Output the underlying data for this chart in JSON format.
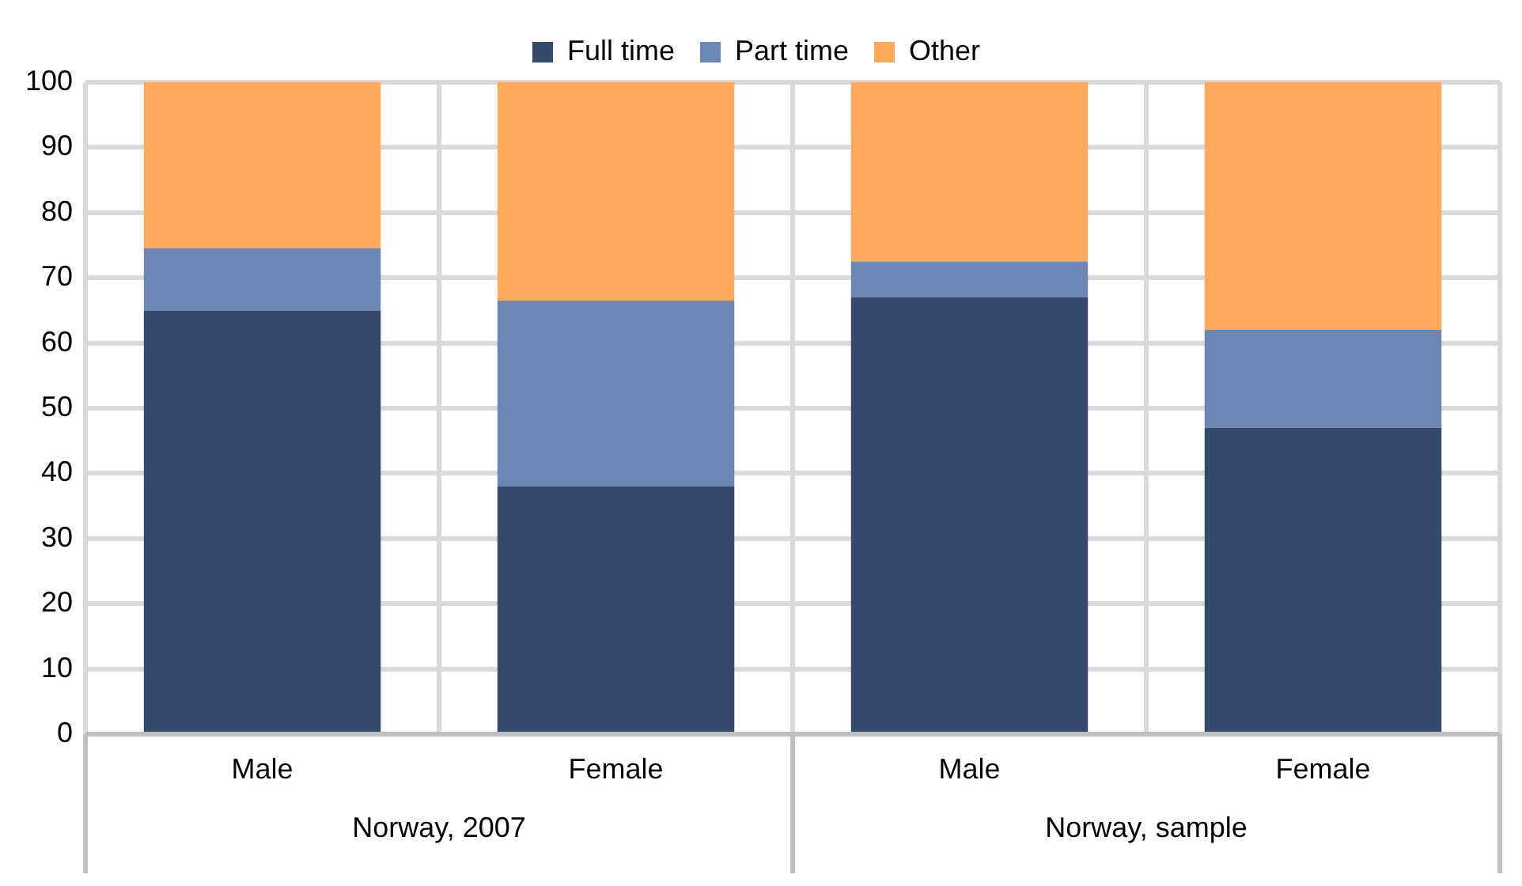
{
  "chart_data": {
    "type": "bar",
    "stacked": true,
    "categories": [
      "Male",
      "Female",
      "Male",
      "Female"
    ],
    "series": [
      {
        "name": "Full time",
        "color": "#36486b",
        "values": [
          65,
          38,
          67,
          47
        ]
      },
      {
        "name": "Part time",
        "color": "#6d87b4",
        "values": [
          9.5,
          28.5,
          5.5,
          15
        ]
      },
      {
        "name": "Other",
        "color": "#fdaa5c",
        "values": [
          25.5,
          33.5,
          27.5,
          38
        ]
      }
    ],
    "ylim": [
      0,
      100
    ],
    "yticks": [
      0,
      10,
      20,
      30,
      40,
      50,
      60,
      70,
      80,
      90,
      100
    ],
    "grid": true,
    "legend": "top",
    "annotations": [
      "Norway, 2007",
      "Norway, sample"
    ]
  }
}
